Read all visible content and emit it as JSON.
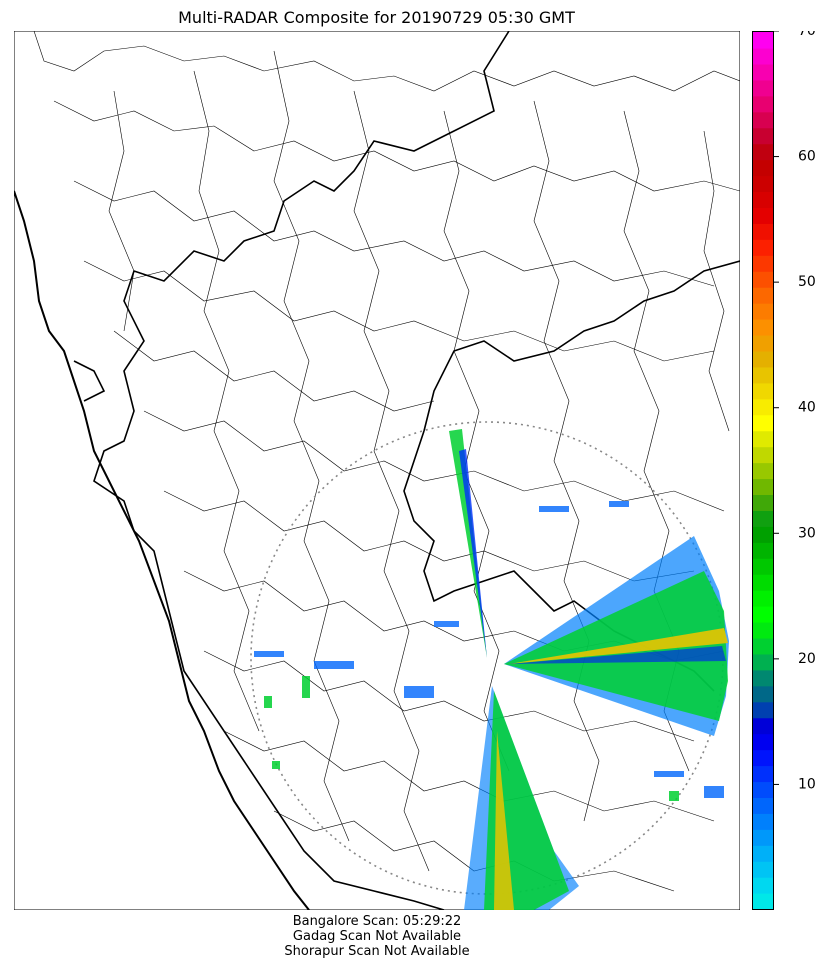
{
  "title": "Multi-RADAR Composite for 20190729 05:30 GMT",
  "footer": {
    "line1": "Bangalore Scan: 05:29:22",
    "line2": "Gadag Scan Not Available",
    "line3": "Shorapur Scan Not Available"
  },
  "colorbar": {
    "min": 0,
    "max": 70,
    "ticks": [
      10,
      20,
      30,
      40,
      50,
      60,
      70
    ],
    "colors": [
      "#00e8e8",
      "#00d8f0",
      "#00c4f4",
      "#00b0f8",
      "#0098fa",
      "#0080fc",
      "#0066fc",
      "#004cfc",
      "#0030fc",
      "#0014fc",
      "#0000f0",
      "#0000d8",
      "#0040b0",
      "#006888",
      "#008870",
      "#00b050",
      "#00d030",
      "#00ea10",
      "#00ff00",
      "#00f000",
      "#00dc00",
      "#00c800",
      "#00b400",
      "#00a000",
      "#10a010",
      "#40a808",
      "#70b800",
      "#98c800",
      "#c0d800",
      "#e0ea00",
      "#ffff00",
      "#f8ec00",
      "#f0d800",
      "#e8c400",
      "#e4b000",
      "#f0a000",
      "#fc9000",
      "#fc7c00",
      "#fc6800",
      "#fc5000",
      "#fc3800",
      "#fc2000",
      "#f01000",
      "#e40000",
      "#d80000",
      "#cc0000",
      "#c40000",
      "#c00010",
      "#c80030",
      "#d80050",
      "#e80070",
      "#f00090",
      "#f800b0",
      "#fc00d0",
      "#ff00f0"
    ]
  },
  "radar": {
    "name": "Bangalore",
    "range_ring": "dotted"
  }
}
